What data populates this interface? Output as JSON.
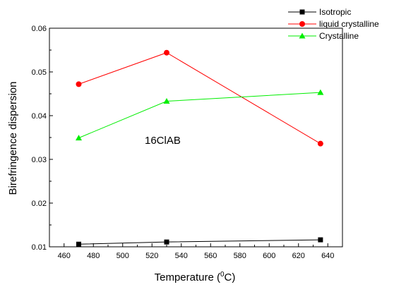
{
  "chart_data": {
    "type": "line",
    "xlabel": "Temperature (",
    "xlabel_sup": "0",
    "xlabel_end": "C)",
    "ylabel": "Birefringence dispersion",
    "xlim": [
      450,
      650
    ],
    "ylim": [
      0.01,
      0.06
    ],
    "x_ticks": [
      460,
      480,
      500,
      520,
      540,
      560,
      580,
      600,
      620,
      640
    ],
    "y_ticks": [
      0.01,
      0.02,
      0.03,
      0.04,
      0.05,
      0.06
    ],
    "annotation": "16ClAB",
    "legend_position": "top-right",
    "grid": false,
    "x": [
      470,
      530,
      635
    ],
    "series": [
      {
        "name": "Isotropic",
        "color": "#000000",
        "marker": "square",
        "values": [
          0.0106,
          0.0111,
          0.0116
        ]
      },
      {
        "name": "liquid crystalline",
        "color": "#ff0000",
        "marker": "circle",
        "values": [
          0.0472,
          0.0544,
          0.0336
        ]
      },
      {
        "name": "Crystalline",
        "color": "#00ee00",
        "marker": "triangle",
        "values": [
          0.0349,
          0.0433,
          0.0453
        ]
      }
    ]
  }
}
